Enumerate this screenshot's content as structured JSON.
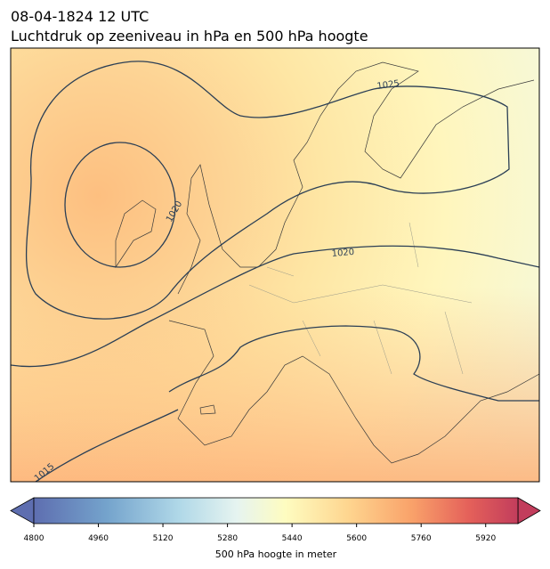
{
  "title": "08-04-1824 12 UTC",
  "subtitle": "Luchtdruk op zeeniveau in hPa en 500 hPa hoogte",
  "contour_labels": [
    1025,
    1020,
    1020,
    1015
  ],
  "colorbar": {
    "label": "500 hPa hoogte in meter",
    "cmap": "RdYlBu_r",
    "lim": [
      4800,
      6000
    ],
    "ticks": [
      4800,
      4960,
      5120,
      5280,
      5440,
      5600,
      5760,
      5920
    ]
  }
}
